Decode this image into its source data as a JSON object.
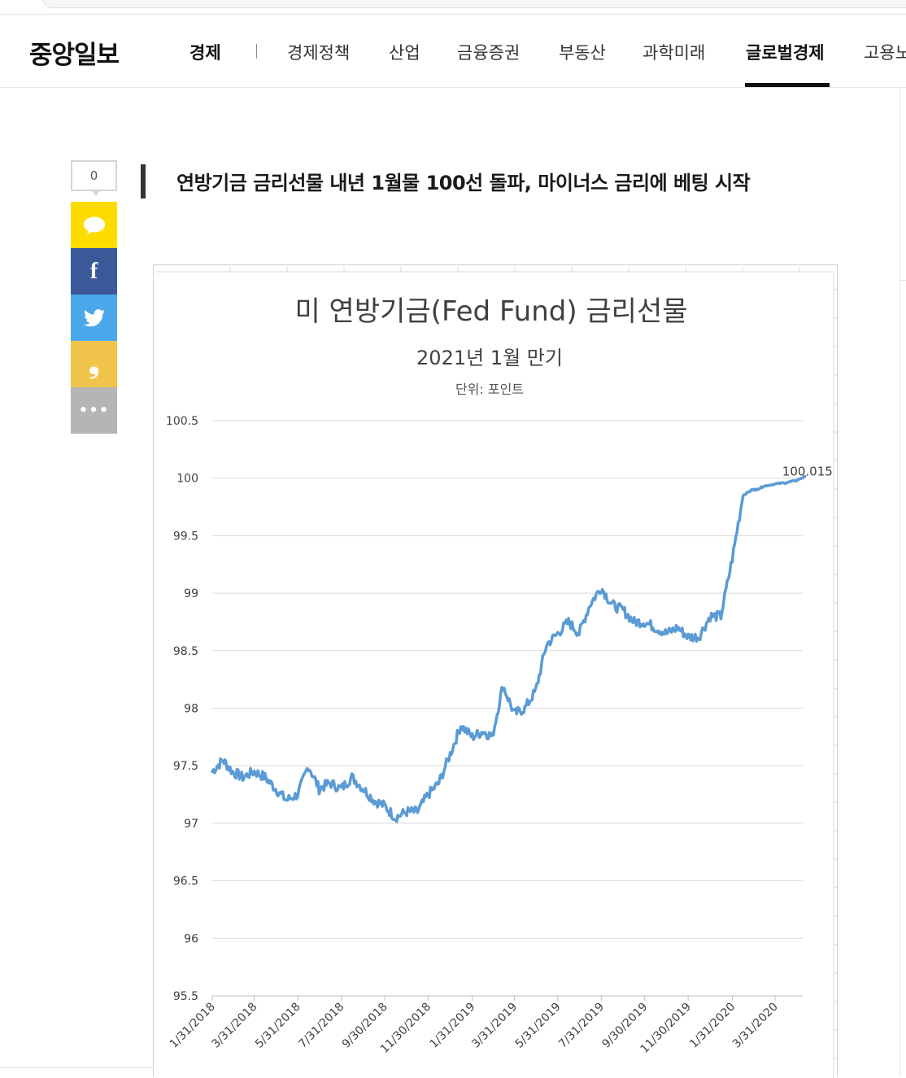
{
  "site": {
    "logo": "중앙일보",
    "nav": [
      {
        "label": "경제",
        "bold": true
      },
      {
        "label": "경제정책"
      },
      {
        "label": "산업"
      },
      {
        "label": "금융증권"
      },
      {
        "label": "부동산"
      },
      {
        "label": "과학미래"
      },
      {
        "label": "글로벌경제",
        "active": true
      },
      {
        "label": "고용노"
      }
    ]
  },
  "share": {
    "count": "0",
    "buttons": [
      "kakaotalk-icon",
      "facebook-icon",
      "twitter-icon",
      "quote-icon",
      "more-icon"
    ]
  },
  "article": {
    "headline": "연방기금 금리선물 내년 1월물 100선 돌파, 마이너스 금리에 베팅 시작"
  },
  "chart_data": {
    "type": "line",
    "title": "미 연방기금(Fed Fund) 금리선물",
    "subtitle": "2021년 1월 만기",
    "unit": "단위: 포인트",
    "ylim": [
      95.5,
      100.5
    ],
    "y_ticks": [
      "100.5",
      "100",
      "99.5",
      "99",
      "98.5",
      "98",
      "97.5",
      "97",
      "96.5",
      "96",
      "95.5"
    ],
    "x_ticks": [
      "1/31/2018",
      "3/31/2018",
      "5/31/2018",
      "7/31/2018",
      "9/30/2018",
      "11/30/2018",
      "1/31/2019",
      "3/31/2019",
      "5/31/2019",
      "7/31/2019",
      "9/30/2019",
      "11/30/2019",
      "1/31/2020",
      "3/31/2020"
    ],
    "end_label": "100.015",
    "line_color": "#5b9bd5",
    "grid": true,
    "series": [
      {
        "x": [
          "1/31/2018",
          "2/15/2018",
          "2/28/2018",
          "3/15/2018",
          "3/31/2018",
          "4/15/2018",
          "4/30/2018",
          "5/15/2018",
          "5/31/2018",
          "6/15/2018",
          "6/30/2018",
          "7/15/2018",
          "7/31/2018",
          "8/15/2018",
          "8/31/2018",
          "9/15/2018",
          "9/30/2018",
          "10/15/2018",
          "10/31/2018",
          "11/15/2018",
          "11/30/2018",
          "12/15/2018",
          "12/31/2018",
          "1/15/2019",
          "1/31/2019",
          "2/15/2019",
          "2/28/2019",
          "3/15/2019",
          "3/31/2019",
          "4/15/2019",
          "4/30/2019",
          "5/15/2019",
          "5/31/2019",
          "6/15/2019",
          "6/30/2019",
          "7/15/2019",
          "7/31/2019",
          "8/15/2019",
          "8/31/2019",
          "9/15/2019",
          "9/30/2019",
          "10/15/2019",
          "10/31/2019",
          "11/15/2019",
          "11/30/2019",
          "12/15/2019",
          "12/31/2019",
          "1/15/2020",
          "1/31/2020",
          "2/15/2020",
          "2/28/2020",
          "3/5/2020",
          "3/15/2020",
          "3/31/2020",
          "4/15/2020",
          "4/30/2020",
          "5/12/2020"
        ],
        "values": [
          97.45,
          97.55,
          97.45,
          97.4,
          97.45,
          97.4,
          97.3,
          97.2,
          97.25,
          97.5,
          97.3,
          97.35,
          97.3,
          97.4,
          97.3,
          97.2,
          97.15,
          97.05,
          97.1,
          97.1,
          97.25,
          97.35,
          97.6,
          97.85,
          97.75,
          97.8,
          97.75,
          98.2,
          97.95,
          98.0,
          98.15,
          98.55,
          98.65,
          98.75,
          98.65,
          98.9,
          99.05,
          98.9,
          98.85,
          98.75,
          98.75,
          98.7,
          98.65,
          98.7,
          98.62,
          98.62,
          98.8,
          98.8,
          99.3,
          99.85,
          99.9,
          99.9,
          99.93,
          99.95,
          99.96,
          99.98,
          100.015
        ]
      }
    ]
  }
}
